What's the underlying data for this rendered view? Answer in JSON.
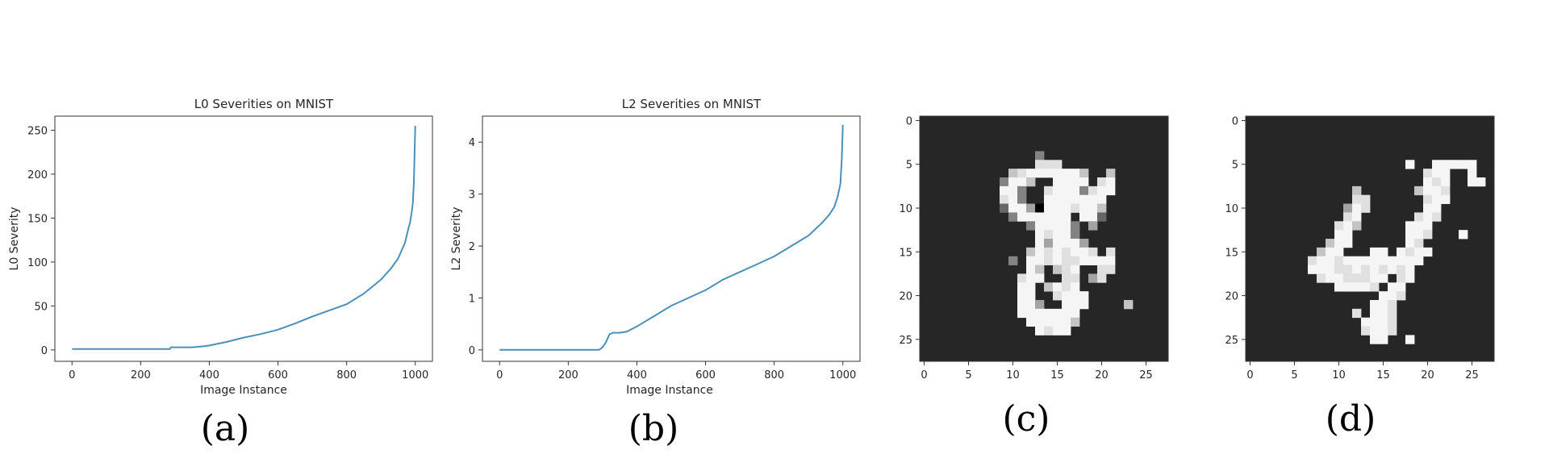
{
  "chart_data": [
    {
      "type": "line",
      "title": "L0 Severities on MNIST",
      "xlabel": "Image Instance",
      "ylabel": "L0 Severity",
      "xlim": [
        -50,
        1050
      ],
      "ylim": [
        -13,
        266
      ],
      "xticks": [
        0,
        200,
        400,
        600,
        800,
        1000
      ],
      "yticks": [
        0,
        50,
        100,
        150,
        200,
        250
      ],
      "color": "#4a90b8",
      "x": [
        0,
        100,
        200,
        285,
        288,
        300,
        350,
        380,
        400,
        450,
        500,
        550,
        600,
        650,
        700,
        750,
        800,
        850,
        900,
        930,
        950,
        970,
        980,
        985,
        990,
        993,
        996,
        998,
        1000
      ],
      "y": [
        1,
        1,
        1,
        1,
        3,
        3,
        3,
        4,
        5,
        9,
        14,
        18,
        23,
        30,
        38,
        45,
        52,
        64,
        80,
        93,
        104,
        122,
        138,
        145,
        158,
        167,
        190,
        225,
        255
      ],
      "caption": "(a)"
    },
    {
      "type": "line",
      "title": "L2 Severities on MNIST",
      "xlabel": "Image Instance",
      "ylabel": "L2 Severity",
      "xlim": [
        -50,
        1050
      ],
      "ylim": [
        -0.22,
        4.5
      ],
      "xticks": [
        0,
        200,
        400,
        600,
        800,
        1000
      ],
      "yticks": [
        0,
        1,
        2,
        3,
        4
      ],
      "color": "#4a90b8",
      "x": [
        0,
        100,
        200,
        290,
        300,
        310,
        320,
        330,
        340,
        350,
        370,
        400,
        450,
        500,
        550,
        600,
        650,
        700,
        750,
        800,
        850,
        900,
        940,
        960,
        975,
        985,
        993,
        997,
        1000
      ],
      "y": [
        0,
        0,
        0,
        0,
        0.05,
        0.15,
        0.3,
        0.33,
        0.33,
        0.33,
        0.35,
        0.45,
        0.65,
        0.85,
        1.0,
        1.15,
        1.35,
        1.5,
        1.65,
        1.8,
        2.0,
        2.2,
        2.45,
        2.6,
        2.75,
        2.95,
        3.2,
        3.7,
        4.33
      ],
      "caption": "(b)"
    },
    {
      "type": "heatmap",
      "xticks": [
        0,
        5,
        10,
        15,
        20,
        25
      ],
      "yticks": [
        0,
        5,
        10,
        15,
        20,
        25
      ],
      "size": 28,
      "grid_start": [
        8,
        4
      ],
      "grid_rows": [
        "00000300000000000",
        "00000666000000000",
        "00567777775005000",
        "03775007777067000",
        "07730067773677000",
        "06730077777770000",
        "02774877767750000",
        "00377777707720000",
        "00003777730400000",
        "00000767730000000",
        "00000747774000000",
        "00005767677606000",
        "00307767667777000",
        "00007505670066000",
        "00067700660460000",
        "00077057670000000",
        "00077006777000000",
        "00077400777000050",
        "00077777770000000",
        "00007777750000000",
        "00000767700000000"
      ],
      "caption": "(c)"
    },
    {
      "type": "heatmap",
      "xticks": [
        0,
        5,
        10,
        15,
        20,
        25
      ],
      "yticks": [
        0,
        5,
        10,
        15,
        20,
        25
      ],
      "size": 28,
      "grid_start": [
        6,
        5
      ],
      "grid_rows": [
        "000000000000700777770",
        "000000000000006770070",
        "000000000000007670077",
        "000000500000057760000",
        "000000660000006770000",
        "000004760000007700000",
        "000006700000067600000",
        "000067500000777000000",
        "000077000000776000700",
        "000577000000760000000",
        "005770007707677000000",
        "067767777777770000000",
        "077766767676700000000",
        "006776667706700000000",
        "000077776077000000000",
        "000000000776000000000",
        "000000007760000000000",
        "000000607760000000000",
        "000000077760000000000",
        "000000067760000000000",
        "000000007700700000000"
      ],
      "caption": "(d)"
    }
  ]
}
